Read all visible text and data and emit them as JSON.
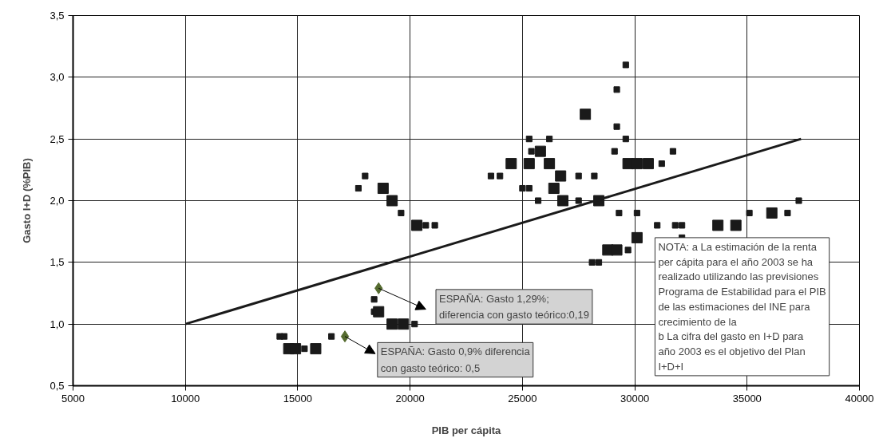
{
  "chart_data": {
    "type": "scatter",
    "xlabel": "PIB per cápita",
    "ylabel": "Gasto I+D (%PIB)",
    "xlim": [
      5000,
      40000
    ],
    "ylim": [
      0.5,
      3.5
    ],
    "xticks": [
      5000,
      10000,
      15000,
      20000,
      25000,
      30000,
      35000,
      40000
    ],
    "yticks": [
      {
        "value": 0.5,
        "label": "0,5"
      },
      {
        "value": 1.0,
        "label": "1,0"
      },
      {
        "value": 1.5,
        "label": "1,5"
      },
      {
        "value": 2.0,
        "label": "2,0"
      },
      {
        "value": 2.5,
        "label": "2,5"
      },
      {
        "value": 3.0,
        "label": "3,0"
      },
      {
        "value": 3.5,
        "label": "3,5"
      }
    ],
    "grid": true,
    "marker": "square",
    "series": [
      {
        "type": "bubble",
        "color": "#1a1a1a",
        "x": [
          18000,
          17700,
          18800,
          19200,
          19600,
          20300,
          20700,
          21100,
          23600,
          24000,
          24500,
          25300,
          25000,
          25300,
          25300,
          25400,
          29600,
          29200,
          27800,
          29200,
          26200,
          29600,
          25800,
          29100,
          31700,
          26200,
          29700,
          30100,
          30600,
          31200,
          26700,
          27500,
          28200,
          26400,
          25700,
          26800,
          27500,
          28400,
          37300,
          29300,
          30100,
          35100,
          36100,
          36800,
          31000,
          31800,
          32100,
          33700,
          34500,
          30100,
          32100,
          28800,
          29200,
          29700,
          28100,
          28400,
          18400,
          18400,
          18600,
          19200,
          19700,
          20200,
          14200,
          14400,
          16500,
          14600,
          14900,
          15300,
          15800
        ],
        "values": [
          2.2,
          2.1,
          2.1,
          2.0,
          1.9,
          1.8,
          1.8,
          1.8,
          2.2,
          2.2,
          2.3,
          2.3,
          2.1,
          2.1,
          2.5,
          2.4,
          3.1,
          2.9,
          2.7,
          2.6,
          2.5,
          2.5,
          2.4,
          2.4,
          2.4,
          2.3,
          2.3,
          2.3,
          2.3,
          2.3,
          2.2,
          2.2,
          2.2,
          2.1,
          2.0,
          2.0,
          2.0,
          2.0,
          2.0,
          1.9,
          1.9,
          1.9,
          1.9,
          1.9,
          1.8,
          1.8,
          1.8,
          1.8,
          1.8,
          1.7,
          1.7,
          1.6,
          1.6,
          1.6,
          1.5,
          1.5,
          1.2,
          1.1,
          1.1,
          1.0,
          1.0,
          1.0,
          0.9,
          0.9,
          0.9,
          0.8,
          0.8,
          0.8,
          0.8
        ],
        "sizes": [
          0.3,
          0.3,
          1,
          1,
          0.3,
          1,
          0.3,
          0.3,
          0.3,
          0.3,
          1,
          1,
          0.3,
          0.3,
          0.3,
          0.3,
          0.3,
          0.3,
          1,
          0.3,
          0.3,
          0.3,
          1,
          0.3,
          0.3,
          1,
          1,
          1,
          1,
          0.3,
          1,
          0.3,
          0.3,
          1,
          0.3,
          1,
          0.3,
          1,
          0.3,
          0.3,
          0.3,
          0.3,
          1,
          0.3,
          0.3,
          0.3,
          0.3,
          1,
          1,
          1,
          0.3,
          1,
          1,
          0.3,
          0.3,
          0.3,
          0.3,
          0.3,
          1,
          1,
          1,
          0.3,
          0.3,
          0.3,
          0.3,
          1,
          1,
          0.3,
          1
        ]
      },
      {
        "marker": "diamond",
        "color": "#556b2f",
        "x": [
          18600,
          17100
        ],
        "values": [
          1.29,
          0.9
        ]
      },
      {
        "type": "line",
        "color": "#1a1a1a",
        "marker": "none",
        "x": [
          10000,
          37400
        ],
        "values": [
          1.0,
          2.5
        ]
      }
    ],
    "annotations": [
      {
        "text": "ESPAÑA: Gasto 1,29%;\ndiferencia con gasto teórico:0,19",
        "x": 18600,
        "y": 1.29
      },
      {
        "text": "ESPAÑA: Gasto 0,9% diferencia\ncon gasto teórico: 0,5",
        "x": 17100,
        "y": 0.9
      },
      "NOTA: a  La estimación de la renta\nper cápita para el año 2003 se ha\nrealizado utilizando las previsiones\nPrograma de Estabilidad para el PIB\nde las estimaciones del INE para\ncrecimiento de la\nb  La cifra del gasto en I+D para\naño 2003  es el objetivo del Plan\nI+D+I"
    ]
  }
}
